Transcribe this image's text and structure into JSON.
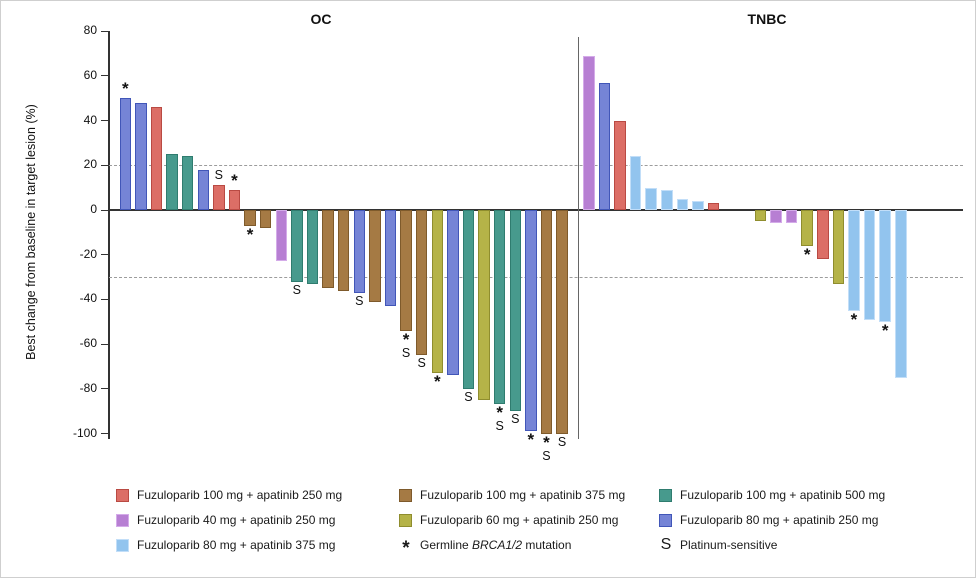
{
  "figure": {
    "background": "#ffffff",
    "border_color": "#cfcfcf"
  },
  "chart_data": {
    "type": "bar",
    "variant": "waterfall",
    "title": "",
    "xlabel": "",
    "ylabel": "Best change from baseline in target lesion (%)",
    "ylim": [
      -100,
      80
    ],
    "yticks": [
      80,
      60,
      40,
      20,
      0,
      -20,
      -40,
      -60,
      -80,
      -100
    ],
    "reference_lines": {
      "values": [
        20,
        -30
      ],
      "style": "dashed",
      "color": "#9c9c9c"
    },
    "grid": false,
    "legend_position": "bottom",
    "marker_meanings": {
      "*": "Germline BRCA1/2 mutation",
      "S": "Platinum-sensitive"
    },
    "treatments": {
      "f100a250": {
        "label": "Fuzuloparib 100 mg + apatinib 250 mg",
        "fill": "#DC6E66",
        "stroke": "#B94A43"
      },
      "f40a250": {
        "label": "Fuzuloparib 40 mg + apatinib 250 mg",
        "fill": "#B77FD3",
        "stroke": "#D4ABE9"
      },
      "f80a375": {
        "label": "Fuzuloparib 80 mg + apatinib 375 mg",
        "fill": "#92C4EE",
        "stroke": "#C2DEF8"
      },
      "f100a375": {
        "label": "Fuzuloparib 100 mg + apatinib 375 mg",
        "fill": "#A57A44",
        "stroke": "#7E5A2B"
      },
      "f60a250": {
        "label": "Fuzuloparib 60 mg + apatinib 250 mg",
        "fill": "#B5B348",
        "stroke": "#8F8D2E"
      },
      "f100a500": {
        "label": "Fuzuloparib 100 mg + apatinib 500 mg",
        "fill": "#479A8D",
        "stroke": "#2F7C6F"
      },
      "f80a250": {
        "label": "Fuzuloparib 80 mg + apatinib 250 mg",
        "fill": "#7584D6",
        "stroke": "#4156B8"
      }
    },
    "groups": [
      {
        "name": "OC",
        "bars": [
          {
            "value": 50,
            "treatment": "f80a250",
            "brca": true
          },
          {
            "value": 48,
            "treatment": "f80a250"
          },
          {
            "value": 46,
            "treatment": "f100a250"
          },
          {
            "value": 25,
            "treatment": "f100a500"
          },
          {
            "value": 24,
            "treatment": "f100a500"
          },
          {
            "value": 18,
            "treatment": "f80a250"
          },
          {
            "value": 11,
            "treatment": "f100a250",
            "platinum": true
          },
          {
            "value": 9,
            "treatment": "f100a250",
            "brca": true
          },
          {
            "value": -7,
            "treatment": "f100a375",
            "brca": true
          },
          {
            "value": -8,
            "treatment": "f100a375"
          },
          {
            "value": -23,
            "treatment": "f40a250"
          },
          {
            "value": -32,
            "treatment": "f100a500",
            "platinum": true
          },
          {
            "value": -33,
            "treatment": "f100a500"
          },
          {
            "value": -35,
            "treatment": "f100a375"
          },
          {
            "value": -36,
            "treatment": "f100a375"
          },
          {
            "value": -37,
            "treatment": "f80a250",
            "platinum": true
          },
          {
            "value": -41,
            "treatment": "f100a375"
          },
          {
            "value": -43,
            "treatment": "f80a250"
          },
          {
            "value": -54,
            "treatment": "f100a375",
            "brca": true,
            "platinum": true
          },
          {
            "value": -65,
            "treatment": "f100a375",
            "platinum": true
          },
          {
            "value": -73,
            "treatment": "f60a250",
            "brca": true
          },
          {
            "value": -74,
            "treatment": "f80a250"
          },
          {
            "value": -80,
            "treatment": "f100a500",
            "platinum": true
          },
          {
            "value": -85,
            "treatment": "f60a250"
          },
          {
            "value": -87,
            "treatment": "f100a500",
            "brca": true,
            "platinum": true
          },
          {
            "value": -90,
            "treatment": "f100a500",
            "platinum": true
          },
          {
            "value": -99,
            "treatment": "f80a250",
            "brca": true
          },
          {
            "value": -100,
            "treatment": "f100a375",
            "brca": true,
            "platinum": true
          },
          {
            "value": -100,
            "treatment": "f100a375",
            "platinum": true
          }
        ]
      },
      {
        "name": "TNBC",
        "bars": [
          {
            "value": 69,
            "treatment": "f40a250"
          },
          {
            "value": 57,
            "treatment": "f80a250"
          },
          {
            "value": 40,
            "treatment": "f100a250"
          },
          {
            "value": 24,
            "treatment": "f80a375"
          },
          {
            "value": 10,
            "treatment": "f80a375"
          },
          {
            "value": 9,
            "treatment": "f80a375"
          },
          {
            "value": 5,
            "treatment": "f80a375"
          },
          {
            "value": 4,
            "treatment": "f80a375"
          },
          {
            "value": 3,
            "treatment": "f100a250"
          },
          {
            "value": 0,
            "treatment": null
          },
          {
            "value": 0,
            "treatment": null
          },
          {
            "value": -5,
            "treatment": "f60a250"
          },
          {
            "value": -6,
            "treatment": "f40a250"
          },
          {
            "value": -6,
            "treatment": "f40a250"
          },
          {
            "value": -16,
            "treatment": "f60a250",
            "brca": true
          },
          {
            "value": -22,
            "treatment": "f100a250"
          },
          {
            "value": -33,
            "treatment": "f60a250"
          },
          {
            "value": -45,
            "treatment": "f80a375",
            "brca": true
          },
          {
            "value": -49,
            "treatment": "f80a375"
          },
          {
            "value": -50,
            "treatment": "f80a375",
            "brca": true
          },
          {
            "value": -75,
            "treatment": "f80a375"
          }
        ]
      }
    ]
  },
  "legend": {
    "columns": [
      {
        "items": [
          {
            "type": "swatch",
            "treatment": "f100a250"
          },
          {
            "type": "swatch",
            "treatment": "f40a250"
          },
          {
            "type": "swatch",
            "treatment": "f80a375"
          }
        ]
      },
      {
        "items": [
          {
            "type": "swatch",
            "treatment": "f100a375"
          },
          {
            "type": "swatch",
            "treatment": "f60a250"
          },
          {
            "type": "marker",
            "symbol": "*",
            "prefix": "Germline ",
            "italic": "BRCA1/2",
            "suffix": " mutation"
          }
        ]
      },
      {
        "items": [
          {
            "type": "swatch",
            "treatment": "f100a500"
          },
          {
            "type": "swatch",
            "treatment": "f80a250"
          },
          {
            "type": "marker",
            "symbol": "S",
            "prefix": "Platinum-sensitive",
            "italic": "",
            "suffix": ""
          }
        ]
      }
    ]
  }
}
